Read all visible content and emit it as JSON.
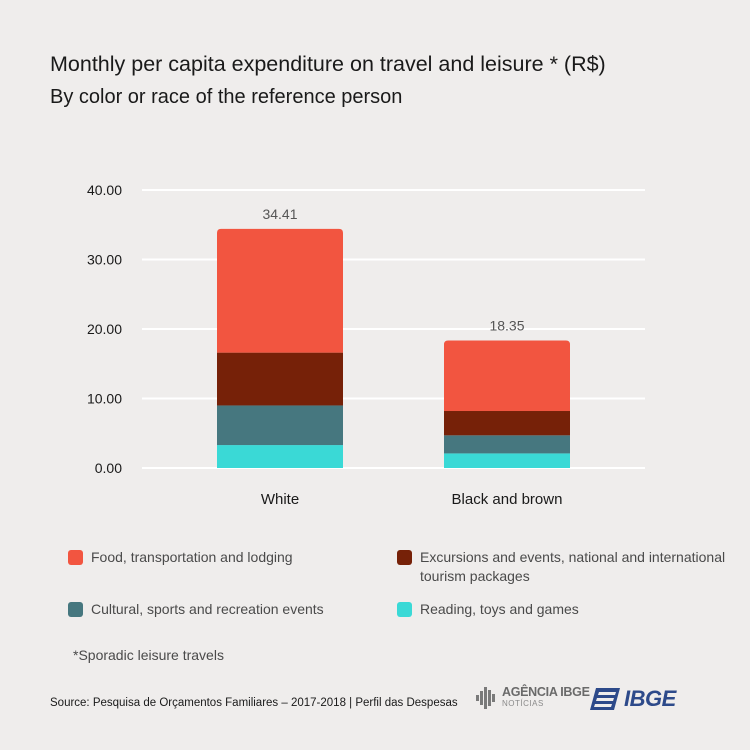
{
  "chart_data": {
    "type": "bar",
    "stacked": true,
    "title": "Monthly per capita expenditure on travel and leisure * (R$)",
    "subtitle": "By color or race of the reference person",
    "categories": [
      "White",
      "Black and brown"
    ],
    "totals": [
      "34.41",
      "18.35"
    ],
    "series": [
      {
        "name": "Reading, toys and games",
        "color": "#3ad9d6",
        "values": [
          3.3,
          2.1
        ]
      },
      {
        "name": "Cultural, sports and recreation events",
        "color": "#46777f",
        "values": [
          5.7,
          2.6
        ]
      },
      {
        "name": "Excursions and events, national and international tourism packages",
        "color": "#762108",
        "values": [
          7.6,
          3.5
        ]
      },
      {
        "name": "Food, transportation and lodging",
        "color": "#f25540",
        "values": [
          17.81,
          10.15
        ]
      }
    ],
    "ylim": [
      0,
      40
    ],
    "yticks": [
      "0.00",
      "10.00",
      "20.00",
      "30.00",
      "40.00"
    ],
    "grid": true,
    "legend_position": "bottom"
  },
  "legend": {
    "food": {
      "label": "Food, transportation and lodging",
      "color": "#f25540"
    },
    "excursions": {
      "label": "Excursions and events, national and international tourism packages",
      "color": "#762108"
    },
    "cultural": {
      "label": "Cultural, sports and recreation events",
      "color": "#46777f"
    },
    "reading": {
      "label": "Reading, toys and games",
      "color": "#3ad9d6"
    }
  },
  "note": "*Sporadic leisure travels",
  "source": "Source: Pesquisa de Orçamentos Familiares – 2017-2018  |  Perfil das Despesas",
  "logos": {
    "agencia_main": "AGÊNCIA IBGE",
    "agencia_sub": "NOTÍCIAS",
    "ibge": "IBGE"
  }
}
